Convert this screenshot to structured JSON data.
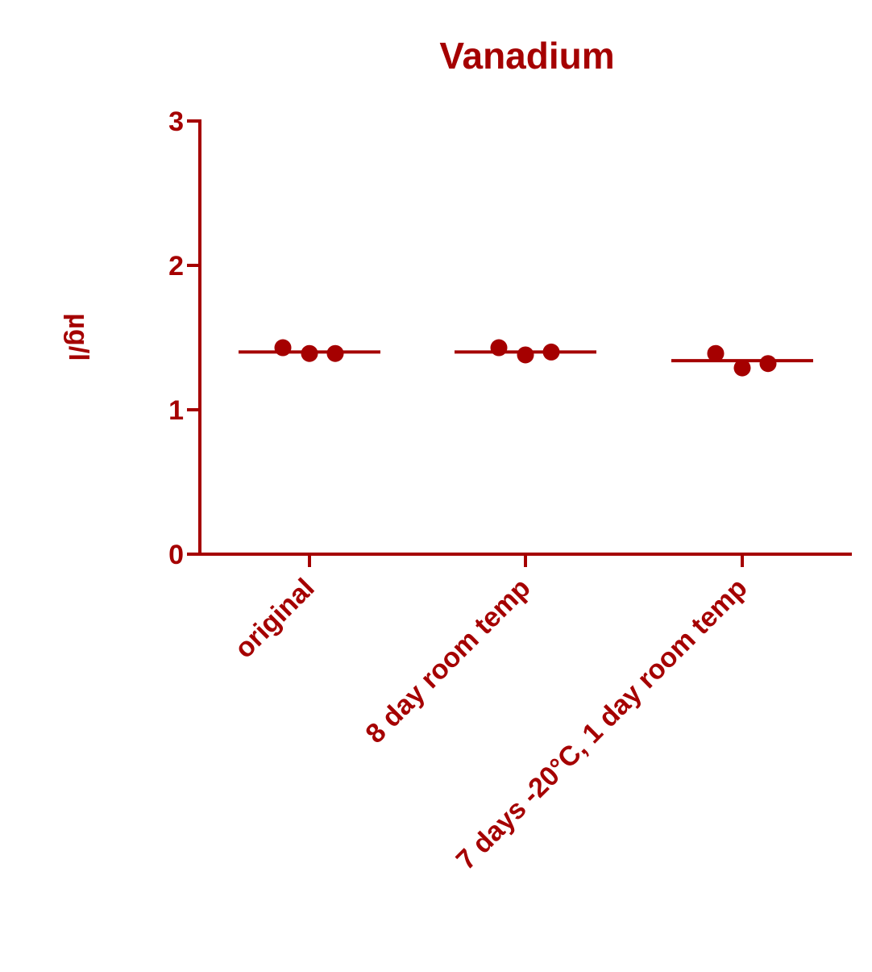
{
  "chart_data": {
    "type": "scatter",
    "title": "Vanadium",
    "xlabel": "",
    "ylabel": "µg/l",
    "ylim": [
      0,
      3
    ],
    "yticks": [
      0,
      1,
      2,
      3
    ],
    "categories": [
      "original",
      "8 day room temp",
      "7 days -20°C, 1 day room temp"
    ],
    "points": [
      [
        1.43,
        1.39,
        1.39
      ],
      [
        1.43,
        1.38,
        1.4
      ],
      [
        1.39,
        1.29,
        1.32
      ]
    ],
    "means": [
      1.4,
      1.4,
      1.34
    ],
    "grid": false,
    "legend": "none",
    "color": "#a50000"
  }
}
